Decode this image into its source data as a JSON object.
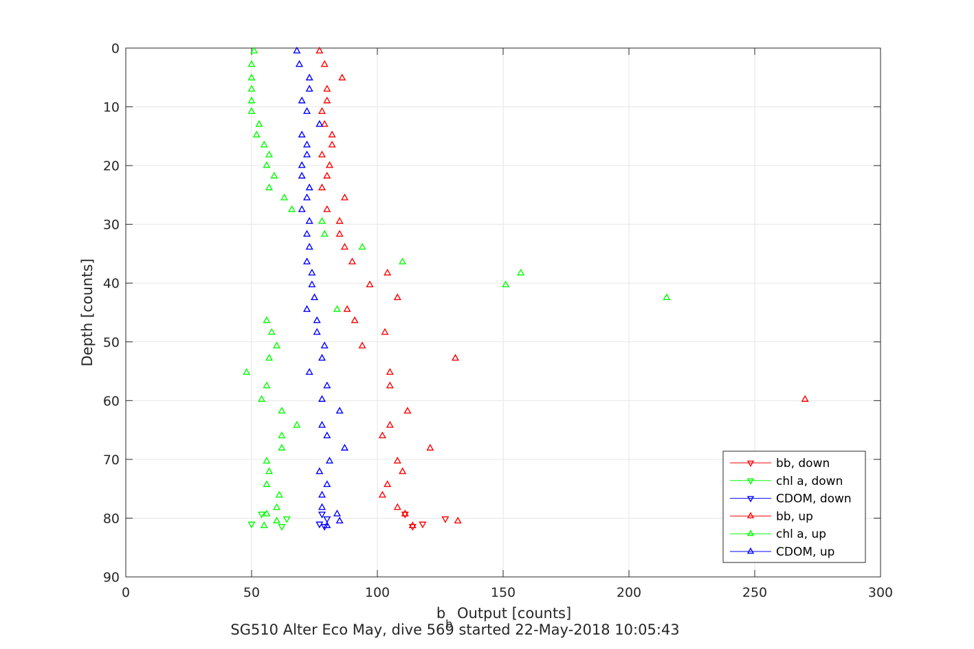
{
  "chart_data": {
    "type": "scatter",
    "title": "",
    "caption": "SG510 Alter Eco May, dive 569 started 22-May-2018 10:05:43",
    "xlabel_main": "b",
    "xlabel_sub": "b",
    "xlabel_rest": " Output [counts]",
    "ylabel": "Depth [counts]",
    "xlim": [
      0,
      300
    ],
    "ylim": [
      90,
      0
    ],
    "y_reversed": true,
    "xticks": [
      0,
      50,
      100,
      150,
      200,
      250,
      300
    ],
    "yticks": [
      0,
      10,
      20,
      30,
      40,
      50,
      60,
      70,
      80,
      90
    ],
    "grid": true,
    "legend_position": "bottom-right",
    "series": [
      {
        "name": "bb, down",
        "color": "#ff0000",
        "marker": "triangle-down",
        "points": [
          [
            111,
            79.3
          ],
          [
            118,
            81.0
          ],
          [
            127,
            80.1
          ],
          [
            114,
            81.4
          ]
        ]
      },
      {
        "name": "chl a, down",
        "color": "#00ff00",
        "marker": "triangle-down",
        "points": [
          [
            50,
            81.0
          ],
          [
            54,
            79.3
          ],
          [
            62,
            81.4
          ],
          [
            64,
            80.1
          ]
        ]
      },
      {
        "name": "CDOM, down",
        "color": "#0000ff",
        "marker": "triangle-down",
        "points": [
          [
            77,
            81.0
          ],
          [
            78,
            79.3
          ],
          [
            79,
            81.4
          ],
          [
            80,
            80.1
          ]
        ]
      },
      {
        "name": "bb, up",
        "color": "#ff0000",
        "marker": "triangle-up",
        "points": [
          [
            77,
            0.5
          ],
          [
            79,
            2.8
          ],
          [
            86,
            5.1
          ],
          [
            80,
            7.0
          ],
          [
            80,
            9.0
          ],
          [
            78,
            10.8
          ],
          [
            79,
            13.0
          ],
          [
            82,
            14.8
          ],
          [
            82,
            16.5
          ],
          [
            78,
            18.2
          ],
          [
            81,
            20.0
          ],
          [
            80,
            21.8
          ],
          [
            78,
            23.8
          ],
          [
            87,
            25.5
          ],
          [
            80,
            27.5
          ],
          [
            85,
            29.5
          ],
          [
            85,
            31.7
          ],
          [
            87,
            33.9
          ],
          [
            90,
            36.4
          ],
          [
            104,
            38.3
          ],
          [
            97,
            40.3
          ],
          [
            108,
            42.5
          ],
          [
            88,
            44.5
          ],
          [
            91,
            46.4
          ],
          [
            103,
            48.4
          ],
          [
            94,
            50.7
          ],
          [
            131,
            52.8
          ],
          [
            105,
            55.2
          ],
          [
            105,
            57.5
          ],
          [
            270,
            59.8
          ],
          [
            112,
            61.8
          ],
          [
            105,
            64.2
          ],
          [
            102,
            66.0
          ],
          [
            121,
            68.1
          ],
          [
            108,
            70.3
          ],
          [
            110,
            72.1
          ],
          [
            104,
            74.3
          ],
          [
            102,
            76.1
          ],
          [
            108,
            78.2
          ],
          [
            111,
            79.3
          ],
          [
            132,
            80.5
          ],
          [
            114,
            81.3
          ]
        ]
      },
      {
        "name": "chl a, up",
        "color": "#00ff00",
        "marker": "triangle-up",
        "points": [
          [
            51,
            0.5
          ],
          [
            50,
            2.8
          ],
          [
            50,
            5.1
          ],
          [
            50,
            7.0
          ],
          [
            50,
            9.0
          ],
          [
            50,
            10.8
          ],
          [
            53,
            13.0
          ],
          [
            52,
            14.8
          ],
          [
            55,
            16.5
          ],
          [
            57,
            18.2
          ],
          [
            56,
            20.0
          ],
          [
            59,
            21.8
          ],
          [
            57,
            23.8
          ],
          [
            63,
            25.5
          ],
          [
            66,
            27.5
          ],
          [
            78,
            29.5
          ],
          [
            79,
            31.7
          ],
          [
            94,
            33.9
          ],
          [
            110,
            36.4
          ],
          [
            157,
            38.3
          ],
          [
            151,
            40.3
          ],
          [
            215,
            42.5
          ],
          [
            84,
            44.5
          ],
          [
            56,
            46.4
          ],
          [
            58,
            48.4
          ],
          [
            60,
            50.7
          ],
          [
            57,
            52.8
          ],
          [
            48,
            55.2
          ],
          [
            56,
            57.5
          ],
          [
            54,
            59.8
          ],
          [
            62,
            61.8
          ],
          [
            68,
            64.2
          ],
          [
            62,
            66.0
          ],
          [
            62,
            68.1
          ],
          [
            56,
            70.3
          ],
          [
            57,
            72.1
          ],
          [
            56,
            74.3
          ],
          [
            61,
            76.1
          ],
          [
            60,
            78.2
          ],
          [
            56,
            79.3
          ],
          [
            60,
            80.5
          ],
          [
            55,
            81.3
          ]
        ]
      },
      {
        "name": "CDOM, up",
        "color": "#0000ff",
        "marker": "triangle-up",
        "points": [
          [
            68,
            0.5
          ],
          [
            69,
            2.8
          ],
          [
            73,
            5.1
          ],
          [
            73,
            7.0
          ],
          [
            70,
            9.0
          ],
          [
            72,
            10.8
          ],
          [
            77,
            13.0
          ],
          [
            70,
            14.8
          ],
          [
            72,
            16.5
          ],
          [
            72,
            18.2
          ],
          [
            70,
            20.0
          ],
          [
            70,
            21.8
          ],
          [
            73,
            23.8
          ],
          [
            72,
            25.5
          ],
          [
            70,
            27.5
          ],
          [
            73,
            29.5
          ],
          [
            72,
            31.7
          ],
          [
            73,
            33.9
          ],
          [
            72,
            36.4
          ],
          [
            74,
            38.3
          ],
          [
            74,
            40.3
          ],
          [
            75,
            42.5
          ],
          [
            72,
            44.5
          ],
          [
            76,
            46.4
          ],
          [
            76,
            48.4
          ],
          [
            79,
            50.7
          ],
          [
            78,
            52.8
          ],
          [
            73,
            55.2
          ],
          [
            80,
            57.5
          ],
          [
            78,
            59.8
          ],
          [
            85,
            61.8
          ],
          [
            78,
            64.2
          ],
          [
            80,
            66.0
          ],
          [
            87,
            68.1
          ],
          [
            81,
            70.3
          ],
          [
            77,
            72.1
          ],
          [
            80,
            74.3
          ],
          [
            78,
            76.1
          ],
          [
            78,
            78.2
          ],
          [
            84,
            79.3
          ],
          [
            85,
            80.5
          ],
          [
            80,
            81.3
          ]
        ]
      }
    ]
  }
}
